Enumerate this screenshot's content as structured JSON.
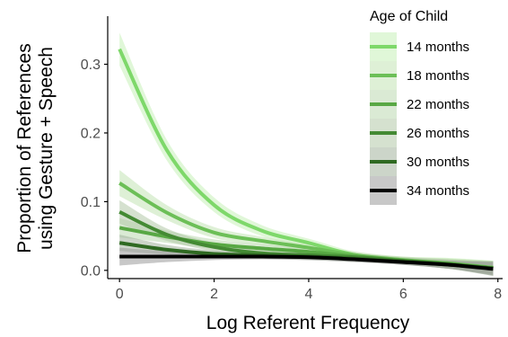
{
  "chart_data": {
    "type": "line",
    "xlabel": "Log Referent Frequency",
    "ylabel_lines": [
      "Proportion of References",
      "using Gesture + Speech"
    ],
    "xlim": [
      -0.25,
      8.1
    ],
    "ylim": [
      -0.012,
      0.37
    ],
    "x_ticks": [
      0,
      2,
      4,
      6,
      8
    ],
    "y_ticks": [
      0.0,
      0.1,
      0.2,
      0.3
    ],
    "x_tick_labels": [
      "0",
      "2",
      "4",
      "6",
      "8"
    ],
    "y_tick_labels": [
      "0.0",
      "0.1",
      "0.2",
      "0.3"
    ],
    "legend_title": "Age of Child",
    "legend_position": "top-right",
    "grid": false,
    "x": [
      0,
      1,
      2,
      3,
      4,
      5,
      6,
      7,
      7.9
    ],
    "series": [
      {
        "name": "14 months",
        "color": "#7ed86a",
        "band_color": "#c6f0b8",
        "values": [
          0.322,
          0.175,
          0.095,
          0.058,
          0.04,
          0.022,
          0.015,
          0.01,
          0.003
        ],
        "lower": [
          0.298,
          0.16,
          0.085,
          0.05,
          0.034,
          0.017,
          0.01,
          0.002,
          -0.008
        ],
        "upper": [
          0.346,
          0.19,
          0.106,
          0.066,
          0.046,
          0.027,
          0.02,
          0.018,
          0.014
        ]
      },
      {
        "name": "18 months",
        "color": "#6cbf57",
        "band_color": "#c3e4b5",
        "values": [
          0.127,
          0.084,
          0.055,
          0.043,
          0.033,
          0.022,
          0.015,
          0.01,
          0.004
        ],
        "lower": [
          0.108,
          0.073,
          0.047,
          0.037,
          0.028,
          0.017,
          0.01,
          0.003,
          -0.006
        ],
        "upper": [
          0.146,
          0.095,
          0.063,
          0.049,
          0.038,
          0.027,
          0.02,
          0.017,
          0.014
        ]
      },
      {
        "name": "22 months",
        "color": "#58a844",
        "band_color": "#bcd8b0",
        "values": [
          0.062,
          0.049,
          0.038,
          0.032,
          0.027,
          0.02,
          0.014,
          0.009,
          0.003
        ],
        "lower": [
          0.048,
          0.04,
          0.031,
          0.026,
          0.022,
          0.015,
          0.009,
          0.002,
          -0.007
        ],
        "upper": [
          0.076,
          0.058,
          0.045,
          0.038,
          0.032,
          0.025,
          0.019,
          0.016,
          0.013
        ]
      },
      {
        "name": "26 months",
        "color": "#448a34",
        "band_color": "#b2c9a8",
        "values": [
          0.085,
          0.052,
          0.034,
          0.025,
          0.022,
          0.019,
          0.014,
          0.009,
          0.003
        ],
        "lower": [
          0.068,
          0.043,
          0.028,
          0.02,
          0.017,
          0.014,
          0.009,
          0.002,
          -0.007
        ],
        "upper": [
          0.102,
          0.061,
          0.04,
          0.03,
          0.027,
          0.024,
          0.019,
          0.016,
          0.013
        ]
      },
      {
        "name": "30 months",
        "color": "#2f6a22",
        "band_color": "#a3b39c",
        "values": [
          0.04,
          0.03,
          0.024,
          0.022,
          0.02,
          0.017,
          0.013,
          0.008,
          0.003
        ],
        "lower": [
          0.028,
          0.023,
          0.019,
          0.017,
          0.015,
          0.012,
          0.008,
          0.002,
          -0.007
        ],
        "upper": [
          0.052,
          0.037,
          0.029,
          0.027,
          0.025,
          0.022,
          0.018,
          0.014,
          0.013
        ]
      },
      {
        "name": "34 months",
        "color": "#000000",
        "band_color": "#9a9a9a",
        "values": [
          0.02,
          0.02,
          0.02,
          0.02,
          0.019,
          0.016,
          0.012,
          0.008,
          0.002
        ],
        "lower": [
          0.007,
          0.012,
          0.015,
          0.016,
          0.015,
          0.012,
          0.008,
          0.002,
          -0.008
        ],
        "upper": [
          0.033,
          0.028,
          0.025,
          0.024,
          0.023,
          0.02,
          0.016,
          0.014,
          0.012
        ]
      }
    ]
  }
}
